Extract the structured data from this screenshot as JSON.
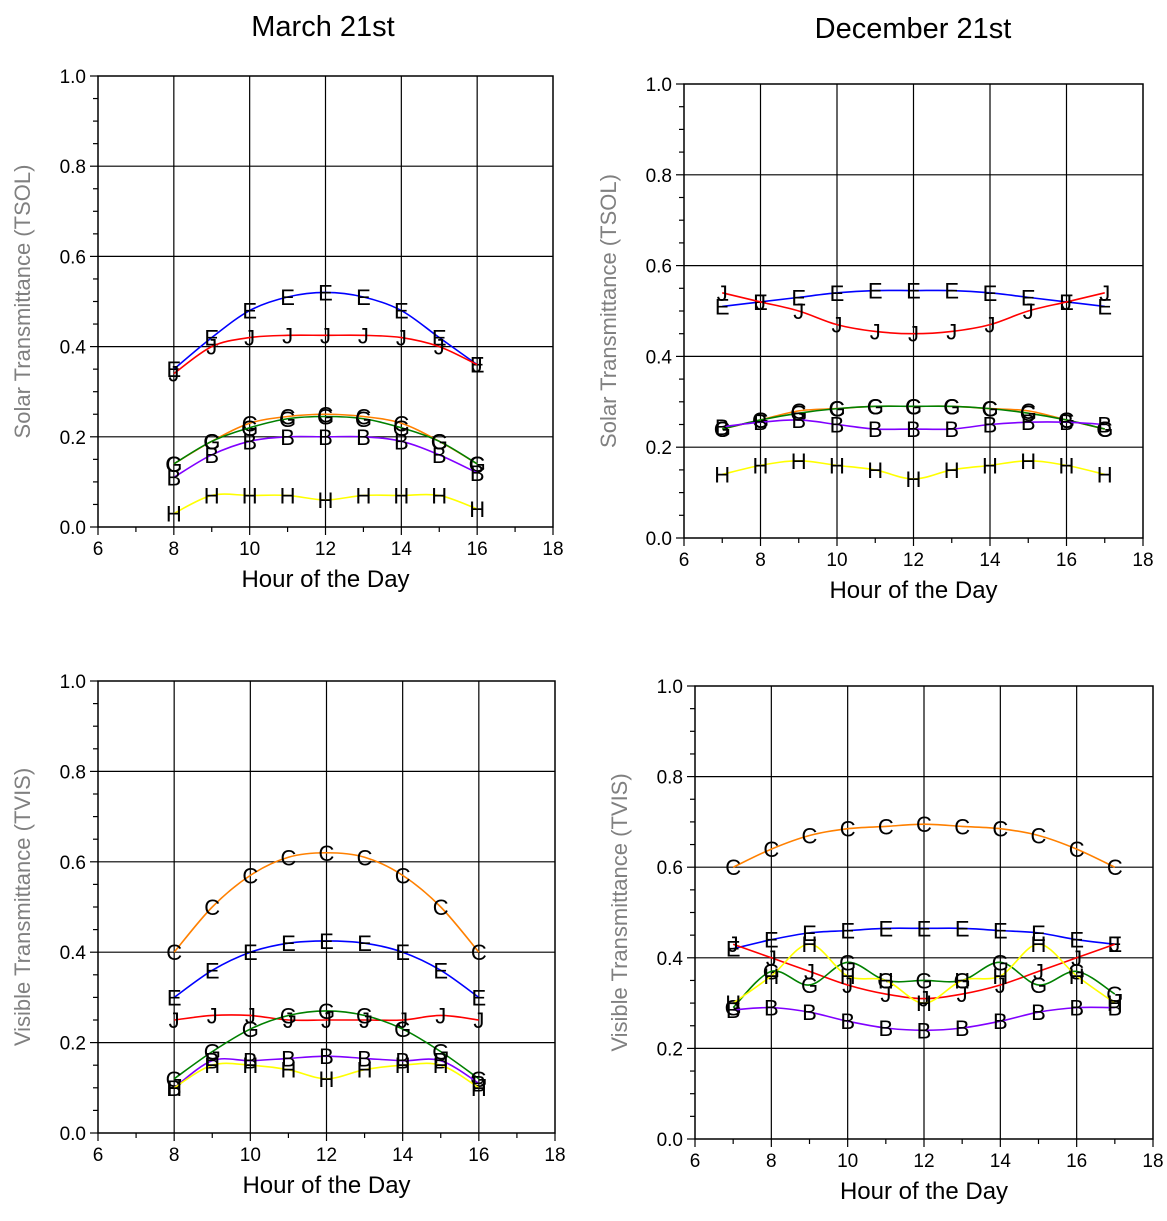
{
  "column_titles": [
    "March 21st",
    "December 21st"
  ],
  "chart_data": [
    {
      "type": "line",
      "column_title": "March 21st",
      "xlabel": "Hour of the Day",
      "ylabel": "Solar Transmittance (TSOL)",
      "xlim": [
        6,
        18
      ],
      "ylim": [
        0,
        1
      ],
      "xticks": [
        6,
        8,
        10,
        12,
        14,
        16,
        18
      ],
      "yticks": [
        0.0,
        0.2,
        0.4,
        0.6,
        0.8,
        1.0
      ],
      "grid": true,
      "x": [
        8,
        9,
        10,
        11,
        12,
        13,
        14,
        15,
        16
      ],
      "series": [
        {
          "name": "E",
          "color": "#0000ff",
          "values": [
            0.35,
            0.42,
            0.48,
            0.51,
            0.52,
            0.51,
            0.48,
            0.42,
            0.36
          ]
        },
        {
          "name": "J",
          "color": "#ff0000",
          "values": [
            0.34,
            0.4,
            0.42,
            0.425,
            0.425,
            0.425,
            0.42,
            0.4,
            0.36
          ]
        },
        {
          "name": "C",
          "color": "#ff8000",
          "values": [
            0.14,
            0.19,
            0.23,
            0.245,
            0.25,
            0.245,
            0.23,
            0.19,
            0.14
          ]
        },
        {
          "name": "G",
          "color": "#008000",
          "values": [
            0.14,
            0.19,
            0.22,
            0.24,
            0.245,
            0.24,
            0.22,
            0.19,
            0.14
          ]
        },
        {
          "name": "B",
          "color": "#8000ff",
          "values": [
            0.11,
            0.16,
            0.19,
            0.2,
            0.2,
            0.2,
            0.19,
            0.16,
            0.12
          ]
        },
        {
          "name": "H",
          "color": "#ffff00",
          "values": [
            0.03,
            0.07,
            0.07,
            0.07,
            0.06,
            0.07,
            0.07,
            0.07,
            0.04
          ]
        }
      ]
    },
    {
      "type": "line",
      "column_title": "December 21st",
      "xlabel": "Hour of the Day",
      "ylabel": "Solar Transmittance (TSOL)",
      "xlim": [
        6,
        18
      ],
      "ylim": [
        0,
        1
      ],
      "xticks": [
        6,
        8,
        10,
        12,
        14,
        16,
        18
      ],
      "yticks": [
        0.0,
        0.2,
        0.4,
        0.6,
        0.8,
        1.0
      ],
      "grid": true,
      "x": [
        7,
        8,
        9,
        10,
        11,
        12,
        13,
        14,
        15,
        16,
        17
      ],
      "series": [
        {
          "name": "E",
          "color": "#0000ff",
          "values": [
            0.51,
            0.52,
            0.53,
            0.54,
            0.545,
            0.545,
            0.545,
            0.54,
            0.53,
            0.52,
            0.51
          ]
        },
        {
          "name": "J",
          "color": "#ff0000",
          "values": [
            0.54,
            0.52,
            0.5,
            0.47,
            0.455,
            0.45,
            0.455,
            0.47,
            0.5,
            0.52,
            0.54
          ]
        },
        {
          "name": "C",
          "color": "#ff8000",
          "values": [
            0.24,
            0.26,
            0.28,
            0.285,
            0.29,
            0.29,
            0.29,
            0.285,
            0.28,
            0.26,
            0.24
          ]
        },
        {
          "name": "G",
          "color": "#008000",
          "values": [
            0.24,
            0.26,
            0.275,
            0.285,
            0.29,
            0.29,
            0.29,
            0.285,
            0.275,
            0.26,
            0.24
          ]
        },
        {
          "name": "B",
          "color": "#8000ff",
          "values": [
            0.245,
            0.255,
            0.26,
            0.25,
            0.24,
            0.24,
            0.24,
            0.25,
            0.255,
            0.255,
            0.25
          ]
        },
        {
          "name": "H",
          "color": "#ffff00",
          "values": [
            0.14,
            0.16,
            0.17,
            0.16,
            0.15,
            0.13,
            0.15,
            0.16,
            0.17,
            0.16,
            0.14
          ]
        }
      ]
    },
    {
      "type": "line",
      "column_title": "March 21st",
      "xlabel": "Hour of the Day",
      "ylabel": "Visible Transmittance (TVIS)",
      "xlim": [
        6,
        18
      ],
      "ylim": [
        0,
        1
      ],
      "xticks": [
        6,
        8,
        10,
        12,
        14,
        16,
        18
      ],
      "yticks": [
        0.0,
        0.2,
        0.4,
        0.6,
        0.8,
        1.0
      ],
      "grid": true,
      "x": [
        8,
        9,
        10,
        11,
        12,
        13,
        14,
        15,
        16
      ],
      "series": [
        {
          "name": "C",
          "color": "#ff8000",
          "values": [
            0.4,
            0.5,
            0.57,
            0.61,
            0.62,
            0.61,
            0.57,
            0.5,
            0.4
          ]
        },
        {
          "name": "E",
          "color": "#0000ff",
          "values": [
            0.3,
            0.36,
            0.4,
            0.42,
            0.425,
            0.42,
            0.4,
            0.36,
            0.3
          ]
        },
        {
          "name": "J",
          "color": "#ff0000",
          "values": [
            0.25,
            0.26,
            0.26,
            0.25,
            0.25,
            0.25,
            0.25,
            0.26,
            0.25
          ]
        },
        {
          "name": "G",
          "color": "#008000",
          "values": [
            0.12,
            0.18,
            0.23,
            0.26,
            0.27,
            0.26,
            0.23,
            0.18,
            0.12
          ]
        },
        {
          "name": "B",
          "color": "#8000ff",
          "values": [
            0.1,
            0.16,
            0.16,
            0.165,
            0.17,
            0.165,
            0.16,
            0.16,
            0.11
          ]
        },
        {
          "name": "H",
          "color": "#ffff00",
          "values": [
            0.1,
            0.15,
            0.15,
            0.14,
            0.12,
            0.14,
            0.15,
            0.15,
            0.1
          ]
        }
      ]
    },
    {
      "type": "line",
      "column_title": "December 21st",
      "xlabel": "Hour of the Day",
      "ylabel": "Visible Transmittance (TVIS)",
      "xlim": [
        6,
        18
      ],
      "ylim": [
        0,
        1
      ],
      "xticks": [
        6,
        8,
        10,
        12,
        14,
        16,
        18
      ],
      "yticks": [
        0.0,
        0.2,
        0.4,
        0.6,
        0.8,
        1.0
      ],
      "grid": true,
      "x": [
        7,
        8,
        9,
        10,
        11,
        12,
        13,
        14,
        15,
        16,
        17
      ],
      "series": [
        {
          "name": "C",
          "color": "#ff8000",
          "values": [
            0.6,
            0.64,
            0.67,
            0.685,
            0.69,
            0.695,
            0.69,
            0.685,
            0.67,
            0.64,
            0.6
          ]
        },
        {
          "name": "E",
          "color": "#0000ff",
          "values": [
            0.42,
            0.44,
            0.455,
            0.46,
            0.465,
            0.465,
            0.465,
            0.46,
            0.455,
            0.44,
            0.43
          ]
        },
        {
          "name": "J",
          "color": "#ff0000",
          "values": [
            0.43,
            0.4,
            0.37,
            0.34,
            0.32,
            0.31,
            0.32,
            0.34,
            0.37,
            0.4,
            0.43
          ]
        },
        {
          "name": "G",
          "color": "#008000",
          "values": [
            0.29,
            0.37,
            0.34,
            0.39,
            0.35,
            0.35,
            0.35,
            0.39,
            0.34,
            0.37,
            0.32
          ]
        },
        {
          "name": "H",
          "color": "#ffff00",
          "values": [
            0.3,
            0.36,
            0.43,
            0.36,
            0.35,
            0.3,
            0.35,
            0.36,
            0.43,
            0.36,
            0.3
          ]
        },
        {
          "name": "B",
          "color": "#8000ff",
          "values": [
            0.285,
            0.29,
            0.28,
            0.26,
            0.245,
            0.24,
            0.245,
            0.26,
            0.28,
            0.29,
            0.29
          ]
        }
      ]
    }
  ]
}
